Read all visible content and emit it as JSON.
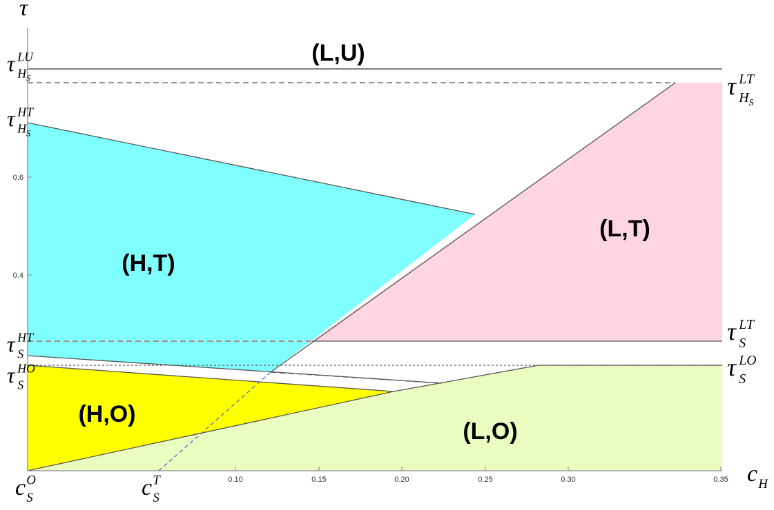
{
  "axes": {
    "y_label": "τ",
    "x_label": {
      "base": "c",
      "sub": "H"
    }
  },
  "x_ticks": [
    "0.10",
    "0.15",
    "0.20",
    "0.25",
    "0.30",
    "0.35"
  ],
  "y_ticks": [
    "0.4",
    "0.6"
  ],
  "regions": [
    "(L,U)",
    "(H,T)",
    "(L,T)",
    "(H,O)",
    "(L,O)"
  ],
  "left_thresholds": [
    {
      "base": "τ",
      "sup": "LU",
      "sub": "H",
      "subsub": "S"
    },
    {
      "base": "τ",
      "sup": "HT",
      "sub": "H",
      "subsub": "S"
    },
    {
      "base": "τ",
      "sup": "HT",
      "sub": "S"
    },
    {
      "base": "τ",
      "sup": "HO",
      "sub": "S"
    }
  ],
  "right_thresholds": [
    {
      "base": "τ",
      "sup": "LT",
      "sub": "H",
      "subsub": "S"
    },
    {
      "base": "τ",
      "sup": "LT",
      "sub": "S"
    },
    {
      "base": "τ",
      "sup": "LO",
      "sub": "S"
    }
  ],
  "bottom_labels": [
    {
      "base": "c",
      "sup": "O",
      "sub": "S"
    },
    {
      "base": "c",
      "sup": "T",
      "sub": "S"
    }
  ]
}
